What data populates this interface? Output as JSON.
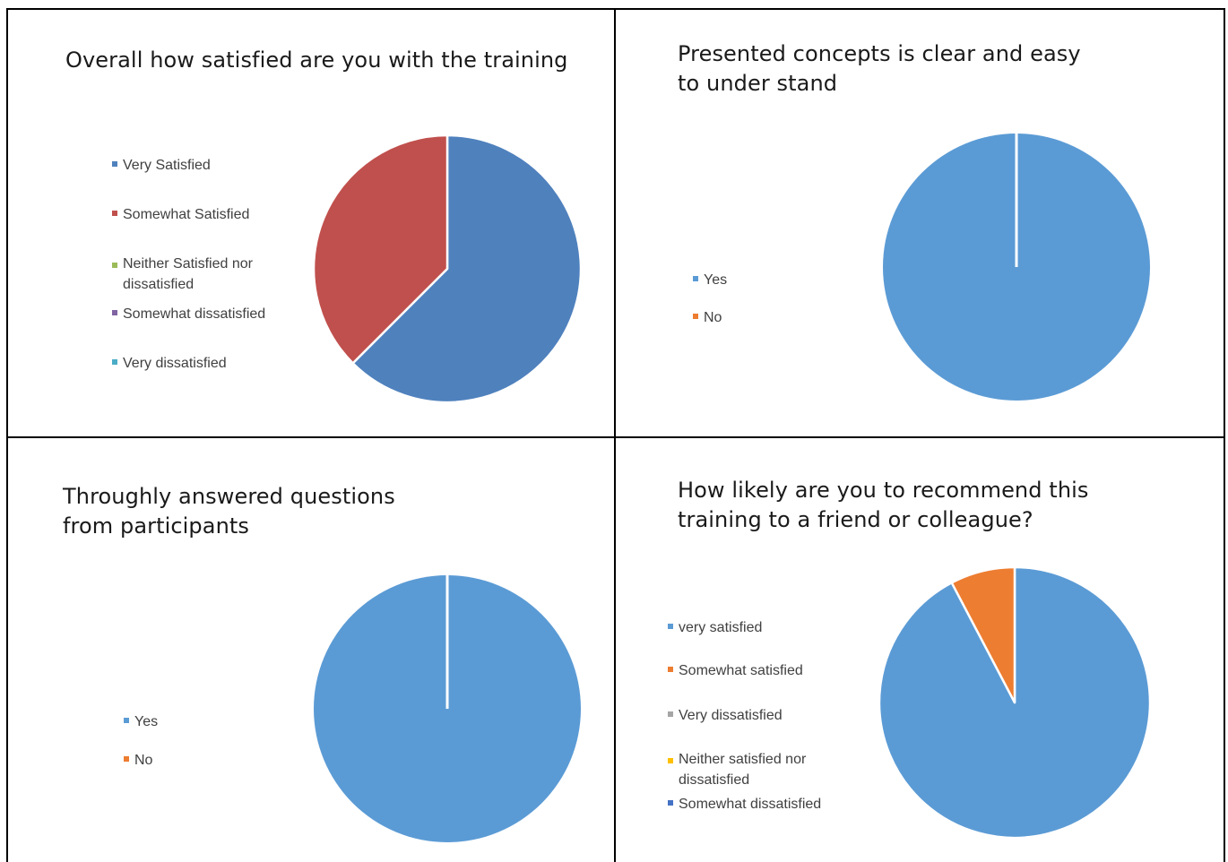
{
  "chart_data": [
    {
      "type": "pie",
      "title": "Overall how satisfied are you with the training",
      "categories": [
        "Very Satisfied",
        "Somewhat Satisfied",
        "Neither Satisfied nor dissatisfied",
        "Somewhat dissatisfied",
        "Very dissatisfied"
      ],
      "values": [
        62.5,
        37.5,
        0,
        0,
        0
      ],
      "colors": [
        "#4f81bd",
        "#c0504d",
        "#9bbb59",
        "#8064a2",
        "#4bacc6"
      ],
      "legend_position": "left"
    },
    {
      "type": "pie",
      "title": "Presented concepts is clear and easy to under stand",
      "categories": [
        "Yes",
        "No"
      ],
      "values": [
        100,
        0
      ],
      "colors": [
        "#5b9bd5",
        "#ed7d31"
      ],
      "legend_position": "left"
    },
    {
      "type": "pie",
      "title": "Throughly answered questions from participants",
      "categories": [
        "Yes",
        "No"
      ],
      "values": [
        100,
        0
      ],
      "colors": [
        "#5b9bd5",
        "#ed7d31"
      ],
      "legend_position": "left"
    },
    {
      "type": "pie",
      "title": "How likely are you to recommend this training to a friend or colleague?",
      "categories": [
        "very satisfied",
        "Somewhat satisfied",
        "Very dissatisfied",
        "Neither satisfied nor dissatisfied",
        "Somewhat dissatisfied"
      ],
      "values": [
        92.3,
        7.7,
        0,
        0,
        0
      ],
      "colors": [
        "#5b9bd5",
        "#ed7d31",
        "#a5a5a5",
        "#ffc000",
        "#4472c4"
      ],
      "legend_position": "left"
    }
  ]
}
